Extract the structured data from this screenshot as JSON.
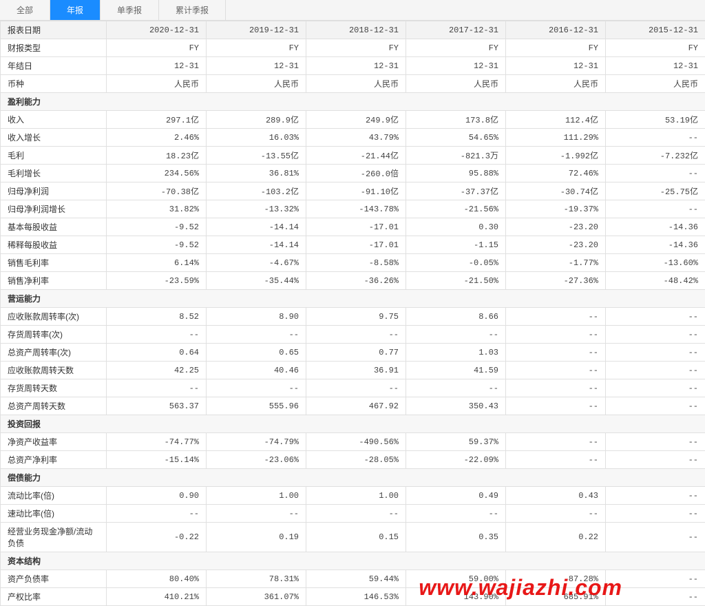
{
  "tabs": [
    {
      "label": "全部",
      "active": false
    },
    {
      "label": "年报",
      "active": true
    },
    {
      "label": "单季报",
      "active": false
    },
    {
      "label": "累计季报",
      "active": false
    }
  ],
  "header": {
    "first_col": "报表日期",
    "dates": [
      "2020-12-31",
      "2019-12-31",
      "2018-12-31",
      "2017-12-31",
      "2016-12-31",
      "2015-12-31"
    ]
  },
  "meta_rows": [
    {
      "label": "财报类型",
      "vals": [
        "FY",
        "FY",
        "FY",
        "FY",
        "FY",
        "FY"
      ]
    },
    {
      "label": "年结日",
      "vals": [
        "12-31",
        "12-31",
        "12-31",
        "12-31",
        "12-31",
        "12-31"
      ]
    },
    {
      "label": "币种",
      "vals": [
        "人民币",
        "人民币",
        "人民币",
        "人民币",
        "人民币",
        "人民币"
      ]
    }
  ],
  "sections": [
    {
      "title": "盈利能力",
      "rows": [
        {
          "label": "收入",
          "vals": [
            "297.1亿",
            "289.9亿",
            "249.9亿",
            "173.8亿",
            "112.4亿",
            "53.19亿"
          ]
        },
        {
          "label": "收入增长",
          "vals": [
            "2.46%",
            "16.03%",
            "43.79%",
            "54.65%",
            "111.29%",
            "--"
          ]
        },
        {
          "label": "毛利",
          "vals": [
            "18.23亿",
            "-13.55亿",
            "-21.44亿",
            "-821.3万",
            "-1.992亿",
            "-7.232亿"
          ]
        },
        {
          "label": "毛利增长",
          "vals": [
            "234.56%",
            "36.81%",
            "-260.0倍",
            "95.88%",
            "72.46%",
            "--"
          ]
        },
        {
          "label": "归母净利润",
          "vals": [
            "-70.38亿",
            "-103.2亿",
            "-91.10亿",
            "-37.37亿",
            "-30.74亿",
            "-25.75亿"
          ]
        },
        {
          "label": "归母净利润增长",
          "vals": [
            "31.82%",
            "-13.32%",
            "-143.78%",
            "-21.56%",
            "-19.37%",
            "--"
          ]
        },
        {
          "label": "基本每股收益",
          "vals": [
            "-9.52",
            "-14.14",
            "-17.01",
            "0.30",
            "-23.20",
            "-14.36"
          ]
        },
        {
          "label": "稀释每股收益",
          "vals": [
            "-9.52",
            "-14.14",
            "-17.01",
            "-1.15",
            "-23.20",
            "-14.36"
          ]
        },
        {
          "label": "销售毛利率",
          "vals": [
            "6.14%",
            "-4.67%",
            "-8.58%",
            "-0.05%",
            "-1.77%",
            "-13.60%"
          ]
        },
        {
          "label": "销售净利率",
          "vals": [
            "-23.59%",
            "-35.44%",
            "-36.26%",
            "-21.50%",
            "-27.36%",
            "-48.42%"
          ]
        }
      ]
    },
    {
      "title": "营运能力",
      "rows": [
        {
          "label": "应收账款周转率(次)",
          "vals": [
            "8.52",
            "8.90",
            "9.75",
            "8.66",
            "--",
            "--"
          ]
        },
        {
          "label": "存货周转率(次)",
          "vals": [
            "--",
            "--",
            "--",
            "--",
            "--",
            "--"
          ]
        },
        {
          "label": "总资产周转率(次)",
          "vals": [
            "0.64",
            "0.65",
            "0.77",
            "1.03",
            "--",
            "--"
          ]
        },
        {
          "label": "应收账款周转天数",
          "vals": [
            "42.25",
            "40.46",
            "36.91",
            "41.59",
            "--",
            "--"
          ]
        },
        {
          "label": "存货周转天数",
          "vals": [
            "--",
            "--",
            "--",
            "--",
            "--",
            "--"
          ]
        },
        {
          "label": "总资产周转天数",
          "vals": [
            "563.37",
            "555.96",
            "467.92",
            "350.43",
            "--",
            "--"
          ]
        }
      ]
    },
    {
      "title": "投资回报",
      "rows": [
        {
          "label": "净资产收益率",
          "vals": [
            "-74.77%",
            "-74.79%",
            "-490.56%",
            "59.37%",
            "--",
            "--"
          ]
        },
        {
          "label": "总资产净利率",
          "vals": [
            "-15.14%",
            "-23.06%",
            "-28.05%",
            "-22.09%",
            "--",
            "--"
          ]
        }
      ]
    },
    {
      "title": "偿债能力",
      "rows": [
        {
          "label": "流动比率(倍)",
          "vals": [
            "0.90",
            "1.00",
            "1.00",
            "0.49",
            "0.43",
            "--"
          ]
        },
        {
          "label": "速动比率(倍)",
          "vals": [
            "--",
            "--",
            "--",
            "--",
            "--",
            "--"
          ]
        },
        {
          "label": "经营业务现金净额/流动负债",
          "vals": [
            "-0.22",
            "0.19",
            "0.15",
            "0.35",
            "0.22",
            "--"
          ]
        }
      ]
    },
    {
      "title": "资本结构",
      "rows": [
        {
          "label": "资产负债率",
          "vals": [
            "80.40%",
            "78.31%",
            "59.44%",
            "59.00%",
            "87.28%",
            "--"
          ]
        },
        {
          "label": "产权比率",
          "vals": [
            "410.21%",
            "361.07%",
            "146.53%",
            "143.90%",
            "685.91%",
            "--"
          ]
        }
      ]
    }
  ],
  "watermark": {
    "text": "www.wajiazhi.com",
    "color": "#e60000"
  }
}
